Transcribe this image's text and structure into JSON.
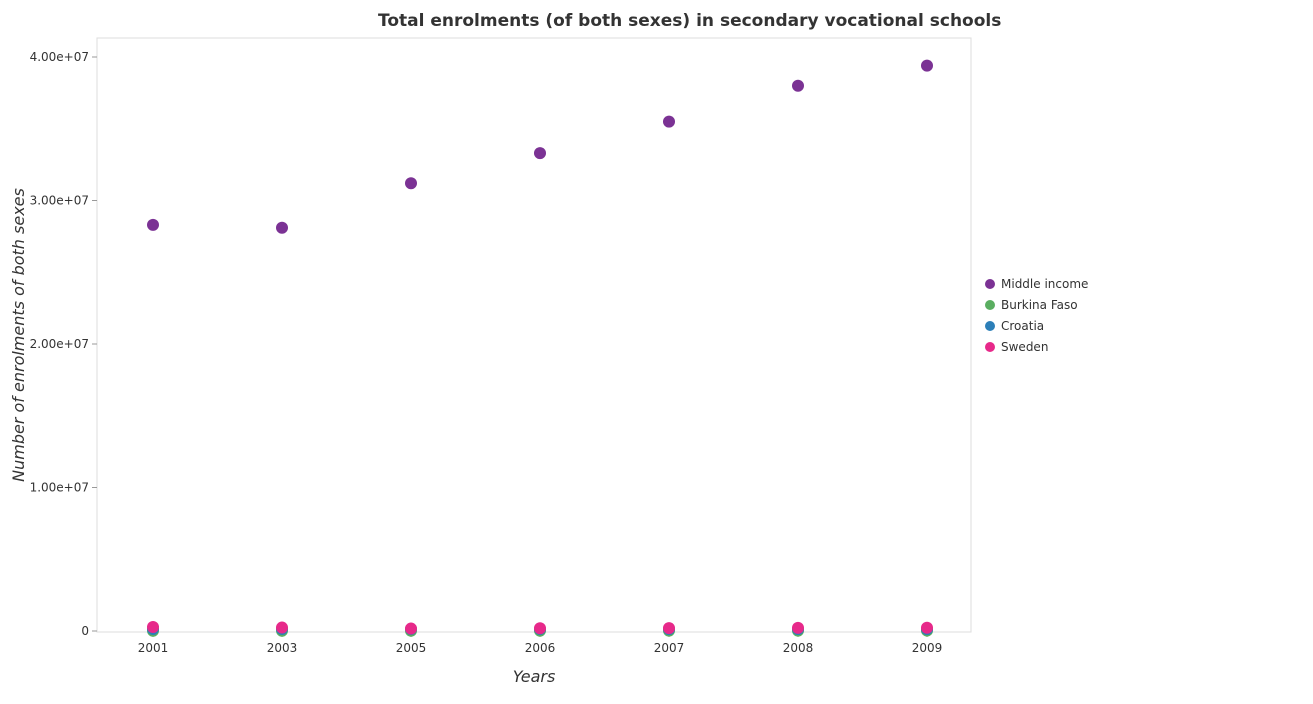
{
  "chart_data": {
    "type": "scatter",
    "title": "Total enrolments (of both sexes) in secondary vocational schools",
    "xlabel": "Years",
    "ylabel": "Number of enrolments of both sexes",
    "categories": [
      "2001",
      "2003",
      "2005",
      "2006",
      "2007",
      "2008",
      "2009"
    ],
    "ylim": [
      0,
      40000000
    ],
    "yticks": [
      {
        "value": 0,
        "label": "0"
      },
      {
        "value": 10000000,
        "label": "1.00e+07"
      },
      {
        "value": 20000000,
        "label": "2.00e+07"
      },
      {
        "value": 30000000,
        "label": "3.00e+07"
      },
      {
        "value": 40000000,
        "label": "4.00e+07"
      }
    ],
    "grid": false,
    "legend_position": "right",
    "series": [
      {
        "name": "Middle income",
        "color": "#7b3294",
        "values": [
          28300000,
          28100000,
          31200000,
          33300000,
          35500000,
          38000000,
          39400000
        ]
      },
      {
        "name": "Burkina Faso",
        "color": "#5aae61",
        "values": [
          15000,
          17000,
          21000,
          23000,
          25000,
          27000,
          30000
        ]
      },
      {
        "name": "Croatia",
        "color": "#2c7fb8",
        "values": [
          140000,
          137000,
          136000,
          135000,
          133000,
          132000,
          130000
        ]
      },
      {
        "name": "Sweden",
        "color": "#e7298a",
        "values": [
          280000,
          240000,
          170000,
          190000,
          200000,
          220000,
          230000
        ]
      }
    ]
  }
}
